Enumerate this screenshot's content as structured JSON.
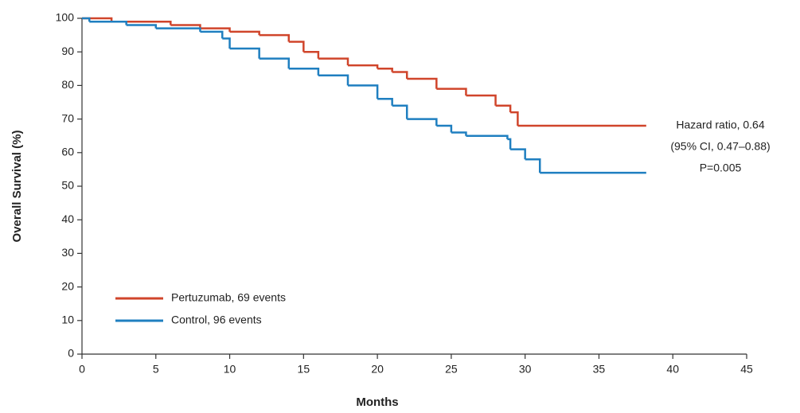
{
  "chart_data": {
    "type": "step-line",
    "y_label": "Overall Survival (%)",
    "x_label": "Months",
    "xlim": [
      0,
      45
    ],
    "xticks": [
      0,
      5,
      10,
      15,
      20,
      25,
      30,
      35,
      40,
      45
    ],
    "ylim": [
      0,
      100
    ],
    "yticks": [
      0,
      10,
      20,
      30,
      40,
      50,
      60,
      70,
      80,
      90,
      100
    ],
    "legend": "lower left",
    "annotation": [
      "Hazard ratio, 0.64",
      "(95% CI, 0.47–0.88)",
      "P=0.005"
    ],
    "series": [
      {
        "name": "Pertuzumab, 69 events",
        "color": "#d0452b",
        "x": [
          0,
          2,
          6,
          8,
          10,
          12,
          14,
          15,
          16,
          18,
          20,
          21,
          22,
          24,
          26,
          28,
          29,
          29.5,
          38.2
        ],
        "values": [
          100,
          99,
          98,
          97,
          96,
          95,
          93,
          90,
          88,
          86,
          85,
          84,
          82,
          79,
          77,
          74,
          72,
          68,
          68
        ]
      },
      {
        "name": "Control, 96 events",
        "color": "#1f7fc0",
        "x": [
          0,
          0.5,
          3,
          5,
          8,
          9.5,
          10,
          12,
          14,
          16,
          18,
          20,
          21,
          22,
          24,
          25,
          26,
          28.8,
          29,
          30,
          31,
          38.2
        ],
        "values": [
          100,
          99,
          98,
          97,
          96,
          94,
          91,
          88,
          85,
          83,
          80,
          76,
          74,
          70,
          68,
          66,
          65,
          64,
          61,
          58,
          54,
          54
        ]
      }
    ]
  }
}
